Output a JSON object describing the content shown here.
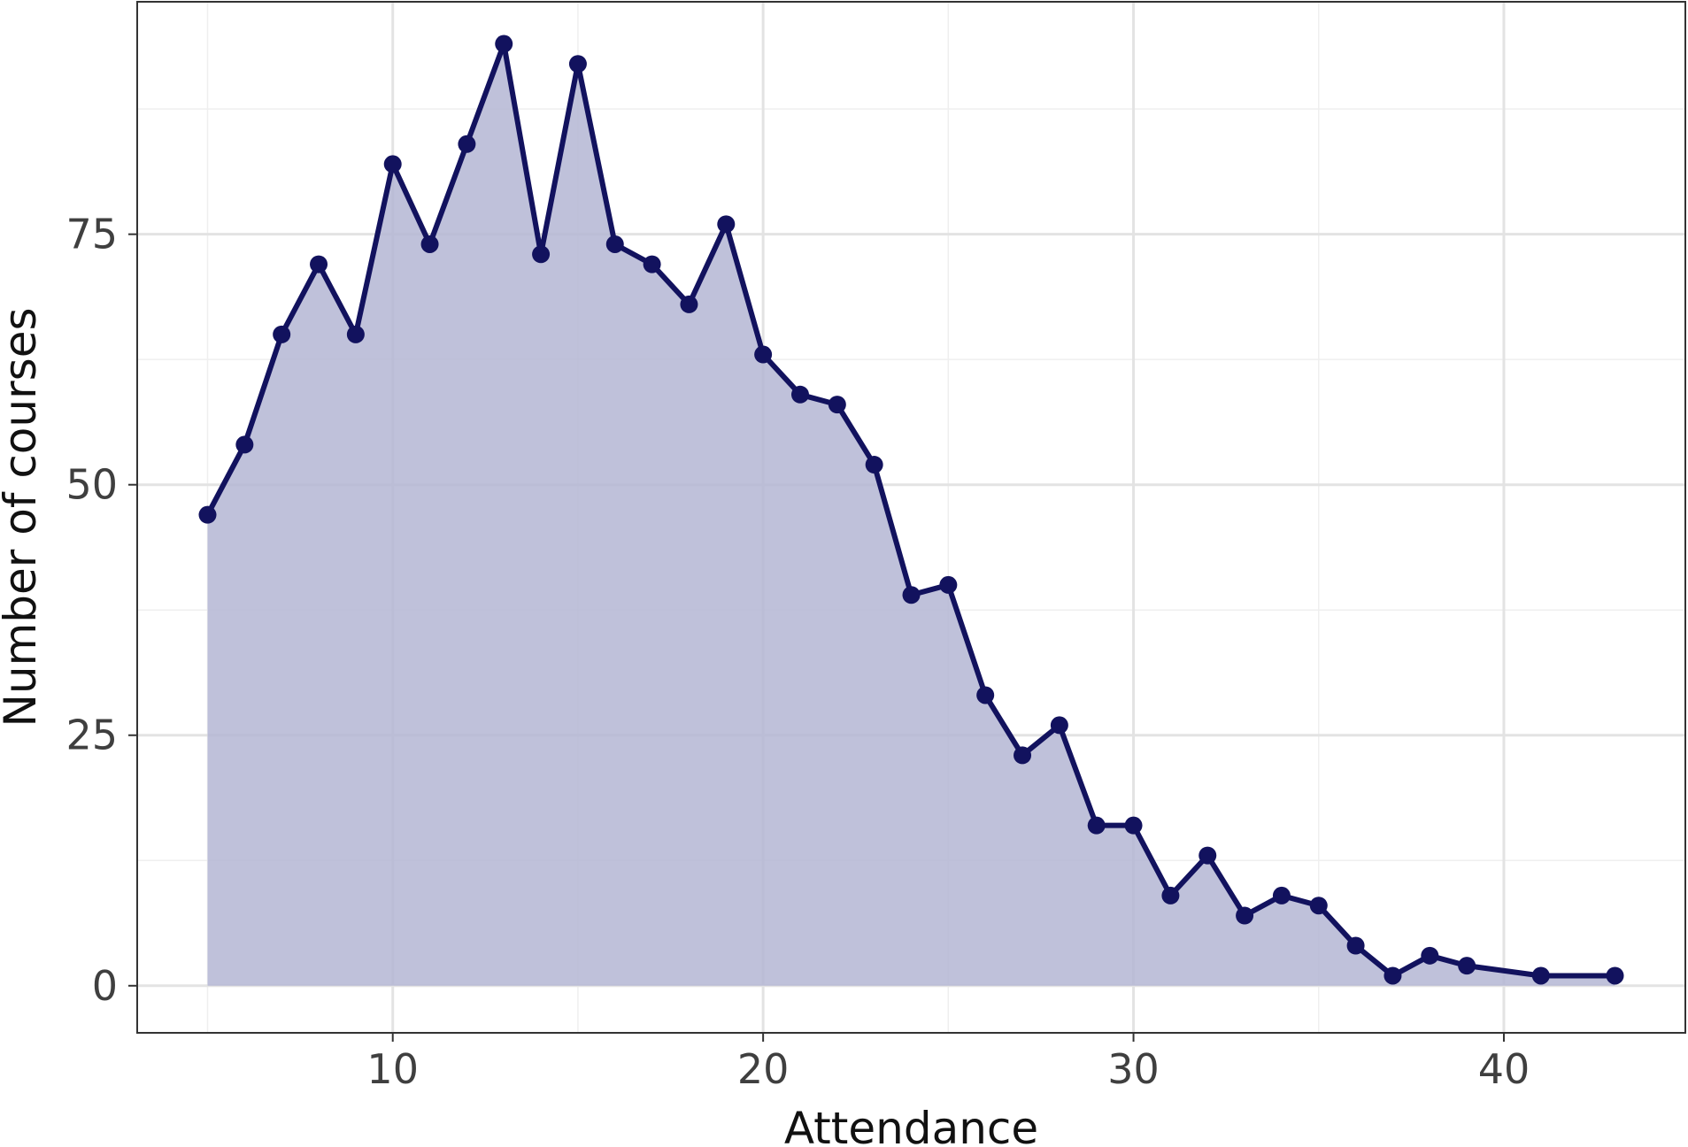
{
  "chart_data": {
    "type": "area",
    "title": "",
    "xlabel": "Attendance",
    "ylabel": "Number of courses",
    "xlim": [
      3.1,
      44.9
    ],
    "ylim": [
      -4.7,
      98.2
    ],
    "xticks": [
      10,
      20,
      30,
      40
    ],
    "yticks": [
      0,
      25,
      50,
      75
    ],
    "xminor": [
      5,
      15,
      25,
      35
    ],
    "yminor": [
      12.5,
      37.5,
      62.5,
      87.5
    ],
    "grid": true,
    "legend": "none",
    "colors": {
      "line": "#12125e",
      "fill": "#b4b6d3",
      "panel_border": "#333333"
    },
    "series": [
      {
        "x": [
          5,
          6,
          7,
          8,
          9,
          10,
          11,
          12,
          13,
          14,
          15,
          16,
          17,
          18,
          19,
          20,
          21,
          22,
          23,
          24,
          25,
          26,
          27,
          28,
          29,
          30,
          31,
          32,
          33,
          34,
          35,
          36,
          37,
          38,
          39,
          41,
          43
        ],
        "y": [
          47,
          54,
          65,
          72,
          65,
          82,
          74,
          84,
          94,
          73,
          92,
          74,
          72,
          68,
          76,
          63,
          59,
          58,
          52,
          39,
          40,
          29,
          23,
          26,
          16,
          16,
          9,
          13,
          7,
          9,
          8,
          4,
          1,
          3,
          2,
          1,
          1
        ]
      }
    ]
  }
}
